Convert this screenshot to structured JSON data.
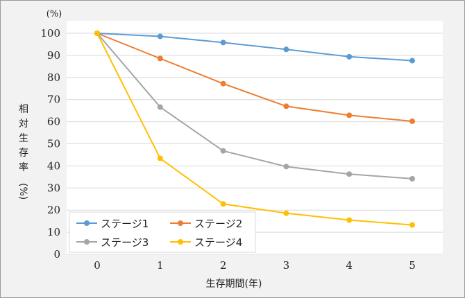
{
  "chart_data": {
    "type": "line",
    "title": "",
    "x": [
      0,
      1,
      2,
      3,
      4,
      5
    ],
    "xlabel": "生存期間(年)",
    "ylabel_chars": [
      "相",
      "対",
      "生",
      "存",
      "率"
    ],
    "ylabel_unit": "(%)",
    "y_unit_top": "(%)",
    "ylim": [
      0,
      100
    ],
    "yticks": [
      0,
      10,
      20,
      30,
      40,
      50,
      60,
      70,
      80,
      90,
      100
    ],
    "grid": true,
    "legend_position": "bottom-left",
    "series": [
      {
        "name": "ステージ1",
        "color": "#5b9bd5",
        "values": [
          100,
          98.6,
          95.8,
          92.7,
          89.4,
          87.6
        ]
      },
      {
        "name": "ステージ2",
        "color": "#ed7d31",
        "values": [
          100,
          88.6,
          77.2,
          67.0,
          62.9,
          60.2
        ]
      },
      {
        "name": "ステージ3",
        "color": "#a5a5a5",
        "values": [
          100,
          66.6,
          46.8,
          39.7,
          36.3,
          34.2
        ]
      },
      {
        "name": "ステージ4",
        "color": "#ffc000",
        "values": [
          100,
          43.4,
          22.8,
          18.6,
          15.5,
          13.3
        ]
      }
    ]
  }
}
